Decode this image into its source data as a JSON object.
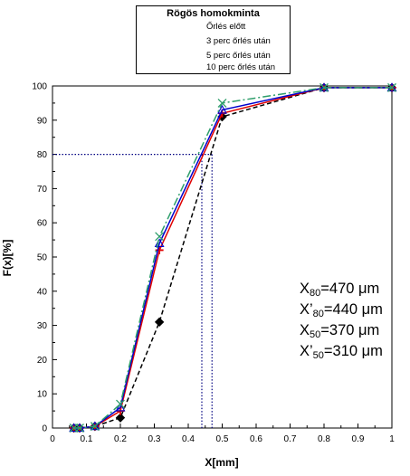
{
  "chart_data": {
    "type": "line",
    "xlabel": "X[mm]",
    "ylabel": "F(x)[%]",
    "xlim": [
      0,
      1
    ],
    "ylim": [
      0,
      100
    ],
    "xticks": [
      "0",
      "0.1",
      "0.2",
      "0.3",
      "0.4",
      "0.5",
      "0.6",
      "0.7",
      "0.8",
      "0.9",
      "1"
    ],
    "yticks": [
      "0",
      "10",
      "20",
      "30",
      "40",
      "50",
      "60",
      "70",
      "80",
      "90",
      "100"
    ],
    "grid": false,
    "legend": {
      "title": "Rögös homokminta",
      "placement": "top-center"
    },
    "series": [
      {
        "name": "Őrlés előtt",
        "color": "#000000",
        "dash": "dashed",
        "marker": "diamond",
        "x": [
          0.063,
          0.08,
          0.125,
          0.2,
          0.315,
          0.5,
          0.8,
          1.0
        ],
        "y": [
          0,
          0,
          0.5,
          3,
          31,
          91,
          99.5,
          99.5
        ]
      },
      {
        "name": "3 perc őrlés után",
        "color": "#e00000",
        "dash": "solid",
        "marker": "plus",
        "x": [
          0.063,
          0.08,
          0.125,
          0.2,
          0.315,
          0.5,
          0.8,
          1.0
        ],
        "y": [
          0,
          0,
          0.5,
          5,
          52,
          92,
          99.5,
          99.5
        ]
      },
      {
        "name": "5 perc őrlés után",
        "color": "#0000cc",
        "dash": "solid",
        "marker": "triangle",
        "x": [
          0.063,
          0.08,
          0.125,
          0.2,
          0.315,
          0.5,
          0.8,
          1.0
        ],
        "y": [
          0,
          0,
          0.5,
          6,
          54,
          93,
          99.5,
          99.5
        ]
      },
      {
        "name": "10 perc őrlés után",
        "color": "#2e9e6b",
        "dash": "dashdot",
        "marker": "x",
        "x": [
          0.063,
          0.08,
          0.125,
          0.2,
          0.315,
          0.5,
          0.8,
          1.0
        ],
        "y": [
          0,
          0,
          0.5,
          7,
          56,
          95,
          99.5,
          99.5
        ]
      }
    ],
    "reference_lines": {
      "horizontal_y": 80,
      "vertical_x": [
        0.44,
        0.47
      ]
    },
    "annotations": [
      {
        "base": "X",
        "sub": "80",
        "value": "=470 μm"
      },
      {
        "base": "X’",
        "sub": "80",
        "value": "=440 μm"
      },
      {
        "base": "X",
        "sub": "50",
        "value": "=370 μm"
      },
      {
        "base": "X’",
        "sub": "50",
        "value": "=310 μm"
      }
    ]
  }
}
